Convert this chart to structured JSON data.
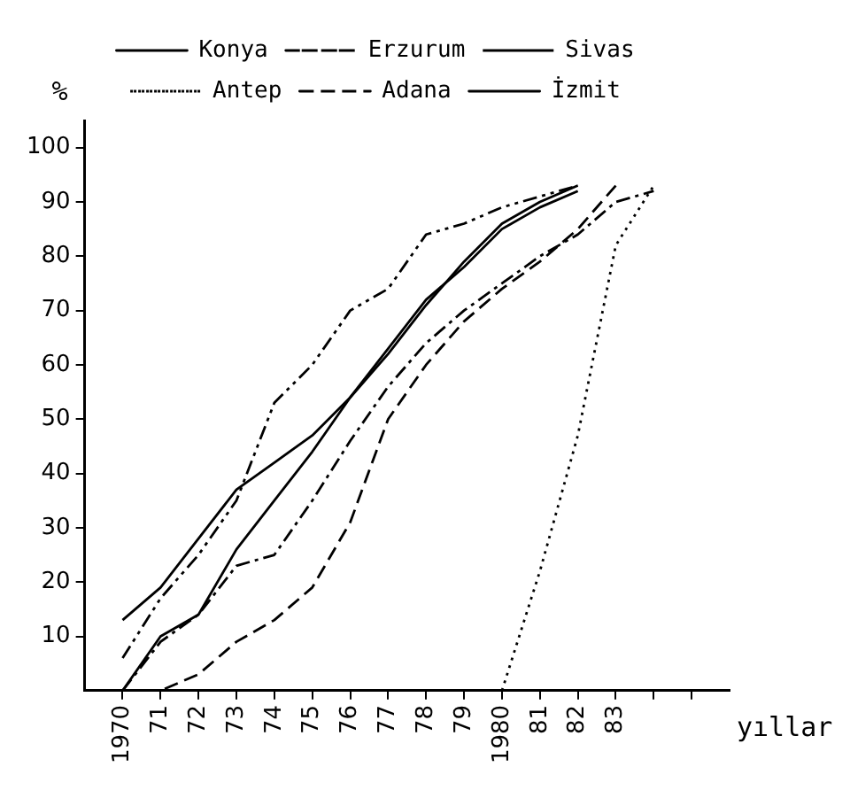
{
  "chart_data": {
    "type": "line",
    "xlabel": "yıllar",
    "ylabel": "%",
    "x": [
      1970,
      1971,
      1972,
      1973,
      1974,
      1975,
      1976,
      1977,
      1978,
      1979,
      1980,
      1981,
      1982,
      1983,
      1984
    ],
    "series": [
      {
        "name": "Konya",
        "color": "#000000",
        "line_style": "solid",
        "values": [
          0,
          10,
          14,
          26,
          35,
          44,
          54,
          63,
          72,
          78,
          85,
          89,
          92,
          null,
          null
        ]
      },
      {
        "name": "Erzurum",
        "color": "#000000",
        "line_style": "dashdotdot",
        "values": [
          6,
          17,
          25,
          35,
          53,
          60,
          70,
          74,
          84,
          86,
          89,
          91,
          93,
          null,
          null
        ]
      },
      {
        "name": "Sivas",
        "color": "#000000",
        "line_style": "dashdot",
        "values": [
          0,
          9,
          14,
          23,
          25,
          35,
          46,
          56,
          64,
          70,
          75,
          80,
          84,
          90,
          92
        ]
      },
      {
        "name": "Antep",
        "color": "#000000",
        "line_style": "dotted",
        "values": [
          null,
          null,
          null,
          null,
          null,
          null,
          null,
          null,
          null,
          null,
          0,
          22,
          47,
          82,
          93
        ]
      },
      {
        "name": "Adana",
        "color": "#000000",
        "line_style": "dashed",
        "values": [
          0,
          0,
          3,
          9,
          13,
          19,
          31,
          50,
          60,
          68,
          74,
          79,
          85,
          93,
          null
        ]
      },
      {
        "name": "İzmit",
        "color": "#000000",
        "line_style": "solid",
        "values": [
          13,
          19,
          28,
          37,
          42,
          47,
          54,
          62,
          71,
          79,
          86,
          90,
          93,
          null,
          null
        ]
      }
    ],
    "xlim": [
      1969,
      1986
    ],
    "xticks": [
      {
        "value": 1970,
        "label": "1970"
      },
      {
        "value": 1971,
        "label": "71"
      },
      {
        "value": 1972,
        "label": "72"
      },
      {
        "value": 1973,
        "label": "73"
      },
      {
        "value": 1974,
        "label": "74"
      },
      {
        "value": 1975,
        "label": "75"
      },
      {
        "value": 1976,
        "label": "76"
      },
      {
        "value": 1977,
        "label": "77"
      },
      {
        "value": 1978,
        "label": "78"
      },
      {
        "value": 1979,
        "label": "79"
      },
      {
        "value": 1980,
        "label": "1980"
      },
      {
        "value": 1981,
        "label": "81"
      },
      {
        "value": 1982,
        "label": "82"
      },
      {
        "value": 1983,
        "label": "83"
      },
      {
        "value": 1984,
        "label": null
      },
      {
        "value": 1985,
        "label": null
      }
    ],
    "ylim": [
      0,
      105
    ],
    "yticks": [
      10,
      20,
      30,
      40,
      50,
      60,
      70,
      80,
      90,
      100
    ],
    "grid": false,
    "legend": "top"
  }
}
